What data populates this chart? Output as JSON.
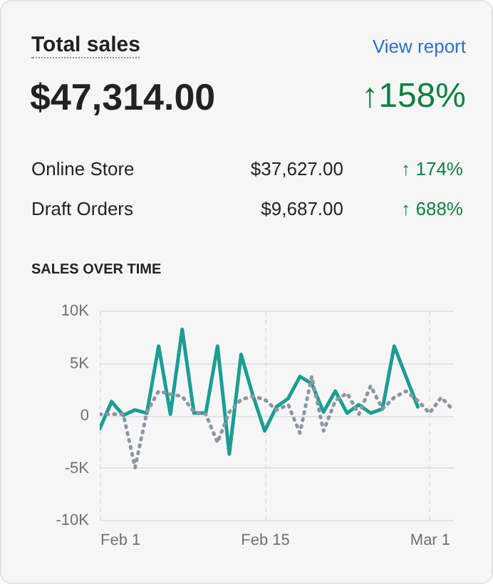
{
  "chart_data": [
    {
      "type": "other",
      "title": "Total sales",
      "annotations": [
        "View report",
        "$47,314.00",
        "↑158%",
        "Online Store",
        "$37,627.00",
        "↑ 174%",
        "Draft Orders",
        "$9,687.00",
        "↑ 688%"
      ]
    },
    {
      "type": "line",
      "title": "SALES OVER TIME",
      "x": [
        "--02-01",
        "--02-02",
        "--02-03",
        "--02-04",
        "--02-05",
        "--02-06",
        "--02-07",
        "--02-08",
        "--02-09",
        "--02-10",
        "--02-11",
        "--02-12",
        "--02-13",
        "--02-14",
        "--02-15",
        "--02-16",
        "--02-17",
        "--02-18",
        "--02-19",
        "--02-20",
        "--02-21",
        "--02-22",
        "--02-23",
        "--02-24",
        "--02-25",
        "--02-26",
        "--02-27",
        "--02-28",
        "--03-01",
        "--03-02",
        "--03-03"
      ],
      "series": [
        {
          "color": "#1a9e93",
          "line_style": "solid",
          "values": [
            -1300,
            1300,
            0,
            500,
            200,
            6600,
            100,
            8200,
            200,
            200,
            6600,
            -3700,
            5800,
            1900,
            -1500,
            800,
            1600,
            3700,
            3000,
            300,
            2300,
            200,
            1000,
            200,
            600,
            6600,
            3700,
            800,
            null,
            null,
            null
          ]
        },
        {
          "color": "#8c96a3",
          "line_style": "dotted",
          "values": [
            100,
            100,
            100,
            -5000,
            300,
            2300,
            2000,
            1800,
            300,
            100,
            -2600,
            300,
            1500,
            1800,
            1500,
            500,
            1000,
            -1700,
            3700,
            -1500,
            1400,
            2100,
            100,
            2800,
            600,
            1700,
            2300,
            1400,
            200,
            1700,
            500
          ]
        }
      ],
      "xlim": [
        "--02-01",
        "--03-03"
      ],
      "xticks": [
        {
          "value": "--02-01",
          "label": "Feb 1"
        },
        {
          "value": "--02-15",
          "label": "Feb 15"
        },
        {
          "value": "--03-01",
          "label": "Mar 1"
        }
      ],
      "ylim": [
        -10000,
        10000
      ],
      "yticks": [
        {
          "value": -10000,
          "label": "-10K"
        },
        {
          "value": -5000,
          "label": "-5K"
        },
        {
          "value": 0,
          "label": "0"
        },
        {
          "value": 5000,
          "label": "5K"
        },
        {
          "value": 10000,
          "label": "10K"
        }
      ],
      "grid": true
    }
  ]
}
